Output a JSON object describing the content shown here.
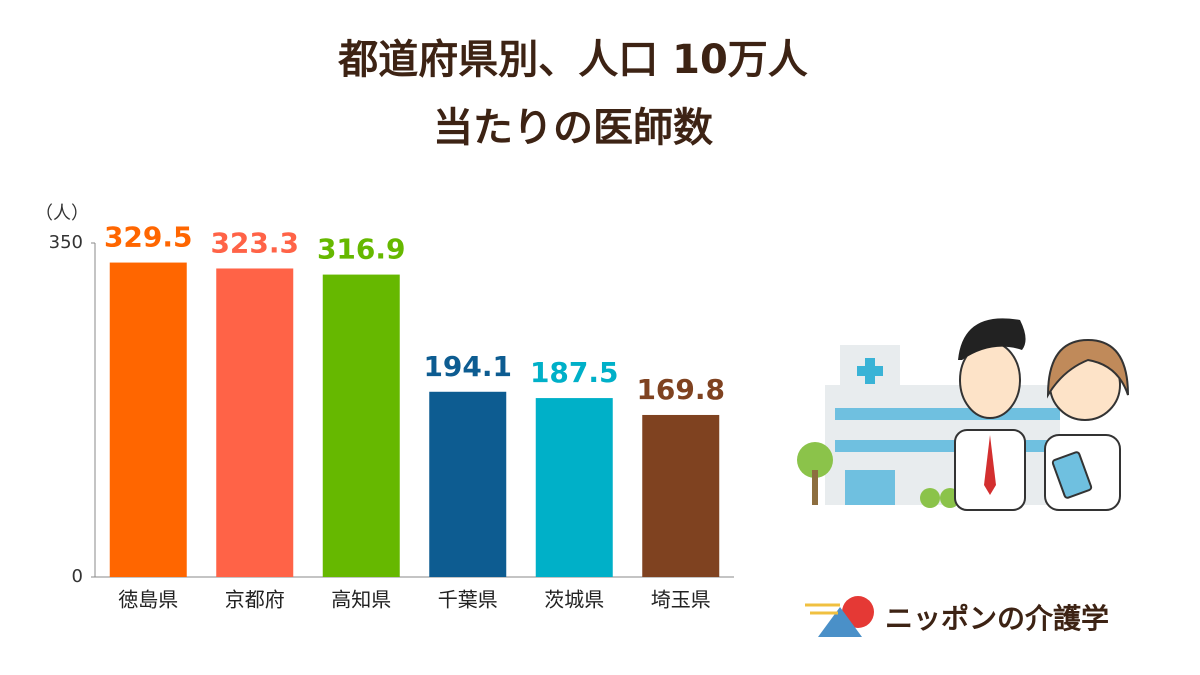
{
  "chart_data": {
    "type": "bar",
    "title": [
      "都道府県別、人口 10万人",
      "当たりの医師数"
    ],
    "unit_label": "（人）",
    "categories": [
      "徳島県",
      "京都府",
      "高知県",
      "千葉県",
      "茨城県",
      "埼玉県"
    ],
    "values": [
      329.5,
      323.3,
      316.9,
      194.1,
      187.5,
      169.8
    ],
    "colors": [
      "#ff6600",
      "#ff6347",
      "#66b800",
      "#0d5c91",
      "#00b0c8",
      "#7f4220"
    ],
    "ylim": [
      0,
      350
    ],
    "yticks": [
      0,
      350
    ],
    "grid": false
  },
  "brand": "ニッポンの介護学"
}
